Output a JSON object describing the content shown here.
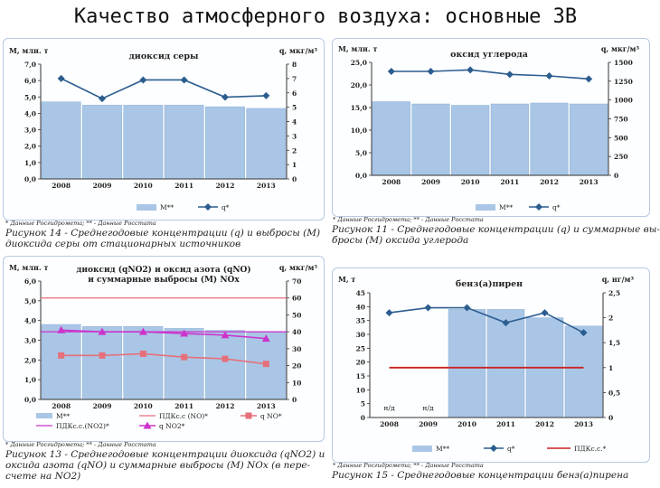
{
  "slide_title": "Качество атмосферного воздуха: основные ЗВ",
  "colors": {
    "bar": "#a9c6e6",
    "bar_edge": "#8fb0d6",
    "line": "#2c5d8f",
    "ref": "#cc2222",
    "no": "#e6707a",
    "no2": "#cc33cc",
    "frame": "#b7c9e2"
  },
  "icons": {
    "series_marker": "diamond",
    "no_marker": "square",
    "no2_marker": "triangle"
  },
  "panels": [
    {
      "note": "* Данные Росгидромета; ** - Данные Росстата",
      "caption": [
        "Рисунок 14 - Среднегодовые концентрации (q) и выбросы (M)",
        "диоксида серы от стационарных источников"
      ]
    },
    {
      "note": "* Данные Росгидромета; ** - Данные Росстата",
      "caption": [
        "Рисунок 11 - Среднегодовые концентрации (q) и суммарные вы-",
        "бросы (M) оксида углерода"
      ]
    },
    {
      "note": "* Данные Росгидромета; ** - Данные Росстата",
      "caption": [
        "Рисунок 13 - Среднегодовые концентрации диоксида (qNO2) и",
        "оксида азота (qNO) и суммарные выбросы (M) NOx (в пере-",
        "счете на NO2)"
      ]
    },
    {
      "note": "* Данные Росгидромета; ** - Данные Росстата",
      "caption": [
        "Рисунок 15 - Среднегодовые концентрации бенз(а)пирена"
      ]
    }
  ],
  "chart_data": [
    {
      "type": "bar",
      "title": "диоксид серы",
      "ylabel_left": "M, млн. т",
      "ylabel_right": "q, мкг/м³",
      "categories": [
        "2008",
        "2009",
        "2010",
        "2011",
        "2012",
        "2013"
      ],
      "ylim_left": [
        0,
        7
      ],
      "yticks_left": [
        "0,0",
        "1,0",
        "2,0",
        "3,0",
        "4,0",
        "5,0",
        "6,0",
        "7,0"
      ],
      "ylim_right": [
        0,
        8
      ],
      "yticks_right": [
        "0",
        "1",
        "2",
        "3",
        "4",
        "5",
        "6",
        "7",
        "8"
      ],
      "series": [
        {
          "name": "M**",
          "type": "bar",
          "axis": "left",
          "values": [
            4.7,
            4.5,
            4.5,
            4.5,
            4.4,
            4.3
          ]
        },
        {
          "name": "q*",
          "type": "line",
          "axis": "right",
          "values": [
            7.0,
            5.6,
            6.9,
            6.9,
            5.7,
            5.8
          ]
        }
      ],
      "legend_position": "bottom"
    },
    {
      "type": "bar",
      "title": "оксид углерода",
      "ylabel_left": "M, млн. т",
      "ylabel_right": "q, мкг/м³",
      "categories": [
        "2008",
        "2009",
        "2010",
        "2011",
        "2012",
        "2013"
      ],
      "ylim_left": [
        0,
        25
      ],
      "yticks_left": [
        "0,0",
        "5,0",
        "10,0",
        "15,0",
        "20,0",
        "25,0"
      ],
      "ylim_right": [
        0,
        1500
      ],
      "yticks_right": [
        "0",
        "250",
        "500",
        "750",
        "1000",
        "1250",
        "1500"
      ],
      "series": [
        {
          "name": "M**",
          "type": "bar",
          "axis": "left",
          "values": [
            16.3,
            15.8,
            15.5,
            15.8,
            16.0,
            15.8
          ]
        },
        {
          "name": "q*",
          "type": "line",
          "axis": "right",
          "values": [
            1380,
            1380,
            1400,
            1340,
            1320,
            1280
          ]
        }
      ],
      "legend_position": "bottom"
    },
    {
      "type": "bar",
      "title": "диоксид (qNO2) и оксид азота (qNO) и суммарные выбросы (M) NOx",
      "title_lines": [
        "диоксид (qNO2) и оксид азота (qNO)",
        "и суммарные выбросы (M) NOx"
      ],
      "ylabel_left": "M, млн. т",
      "ylabel_right": "q, мкг/м³",
      "categories": [
        "2008",
        "2009",
        "2010",
        "2011",
        "2012",
        "2013"
      ],
      "ylim_left": [
        0,
        6
      ],
      "yticks_left": [
        "0,0",
        "1,0",
        "2,0",
        "3,0",
        "4,0",
        "5,0",
        "6,0"
      ],
      "ylim_right": [
        0,
        70
      ],
      "yticks_right": [
        "0",
        "10",
        "20",
        "30",
        "40",
        "50",
        "60",
        "70"
      ],
      "series": [
        {
          "name": "M**",
          "type": "bar",
          "axis": "left",
          "values": [
            3.8,
            3.7,
            3.7,
            3.6,
            3.5,
            3.4
          ]
        },
        {
          "name": "ПДКс.с (NO)*",
          "type": "ref",
          "axis": "right",
          "values": [
            60,
            60,
            60,
            60,
            60,
            60
          ]
        },
        {
          "name": "q NO*",
          "type": "line",
          "axis": "right",
          "marker": "square",
          "values": [
            26,
            26,
            27,
            25,
            24,
            21
          ]
        },
        {
          "name": "ПДКс.с.(NO2)*",
          "type": "ref",
          "axis": "right",
          "values": [
            40,
            40,
            40,
            40,
            40,
            40
          ]
        },
        {
          "name": "q NO2*",
          "type": "line",
          "axis": "right",
          "marker": "triangle",
          "values": [
            41,
            40,
            40,
            39,
            38,
            36
          ]
        }
      ],
      "legend_position": "bottom"
    },
    {
      "type": "bar",
      "title": "бенз(а)пирен",
      "ylabel_left": "M, т",
      "ylabel_right": "q, нг/м³",
      "categories": [
        "2008",
        "2009",
        "2010",
        "2011",
        "2012",
        "2013"
      ],
      "ylim_left": [
        0,
        45
      ],
      "yticks_left": [
        "0",
        "5",
        "10",
        "15",
        "20",
        "25",
        "30",
        "35",
        "40",
        "45"
      ],
      "ylim_right": [
        0,
        2.5
      ],
      "yticks_right": [
        "0",
        "0,5",
        "1",
        "1,5",
        "2",
        "2,5"
      ],
      "bar_labels": [
        "н/д",
        "н/д",
        "",
        "",
        "",
        ""
      ],
      "series": [
        {
          "name": "M**",
          "type": "bar",
          "axis": "left",
          "values": [
            null,
            null,
            39,
            39,
            36,
            33
          ]
        },
        {
          "name": "q*",
          "type": "line",
          "axis": "right",
          "values": [
            2.1,
            2.2,
            2.2,
            1.9,
            2.1,
            1.7
          ]
        },
        {
          "name": "ПДКс.с.*",
          "type": "ref",
          "axis": "right",
          "values": [
            1,
            1,
            1,
            1,
            1,
            1
          ]
        }
      ],
      "legend_position": "bottom"
    }
  ]
}
